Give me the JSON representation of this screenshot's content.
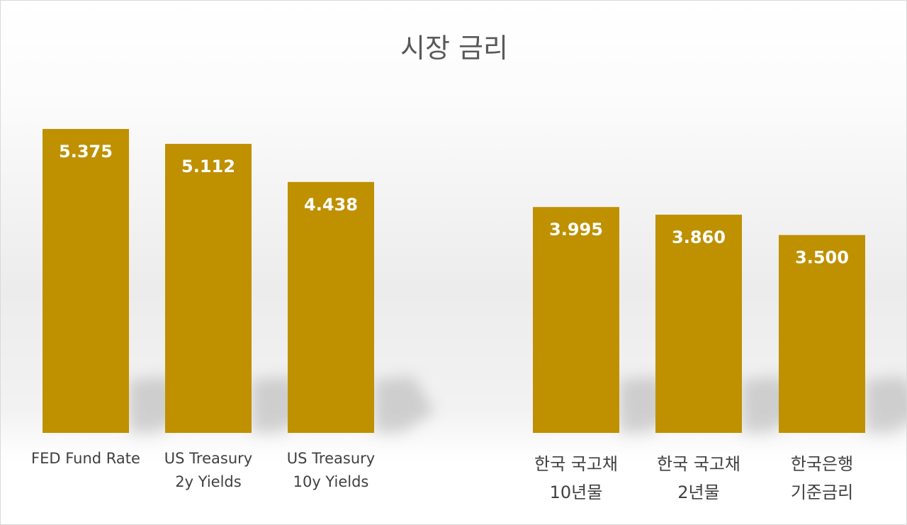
{
  "chart_data": {
    "type": "bar",
    "title": "시장 금리",
    "categories": [
      [
        "FED Fund Rate"
      ],
      [
        "US Treasury",
        "2y Yields"
      ],
      [
        "US Treasury",
        "10y Yields"
      ],
      [
        "한국 국고채",
        "10년물"
      ],
      [
        "한국 국고채",
        "2년물"
      ],
      [
        "한국은행",
        "기준금리"
      ]
    ],
    "values": [
      5.375,
      5.112,
      4.438,
      3.995,
      3.86,
      3.5
    ],
    "value_labels": [
      "5.375",
      "5.112",
      "4.438",
      "3.995",
      "3.860",
      "3.500"
    ],
    "ylim": [
      0,
      5.6
    ],
    "grid": false,
    "legend": "none",
    "bar_color": "#BF9000",
    "data_label_color": "#FFFFFF"
  }
}
